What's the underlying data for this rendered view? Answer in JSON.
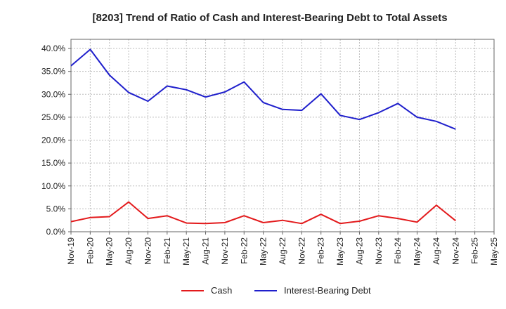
{
  "chart_data": {
    "type": "line",
    "title": "[8203]  Trend of Ratio of Cash and Interest-Bearing Debt to Total Assets",
    "xlabel": "",
    "ylabel": "",
    "categories": [
      "Nov-19",
      "Feb-20",
      "May-20",
      "Aug-20",
      "Nov-20",
      "Feb-21",
      "May-21",
      "Aug-21",
      "Nov-21",
      "Feb-22",
      "May-22",
      "Aug-22",
      "Nov-22",
      "Feb-23",
      "May-23",
      "Aug-23",
      "Nov-23",
      "Feb-24",
      "May-24",
      "Aug-24",
      "Nov-24",
      "Feb-25",
      "May-25"
    ],
    "y_tick_labels": [
      "0.0%",
      "5.0%",
      "10.0%",
      "15.0%",
      "20.0%",
      "25.0%",
      "30.0%",
      "35.0%",
      "40.0%"
    ],
    "ylim": [
      0,
      42
    ],
    "grid": true,
    "legend_position": "bottom",
    "series": [
      {
        "name": "Cash",
        "color": "#e31a1c",
        "values": [
          2.2,
          3.1,
          3.3,
          6.5,
          2.9,
          3.5,
          1.9,
          1.8,
          2.0,
          3.5,
          2.0,
          2.5,
          1.8,
          3.8,
          1.8,
          2.3,
          3.5,
          2.9,
          2.1,
          5.8,
          2.4,
          null,
          null
        ]
      },
      {
        "name": "Interest-Bearing Debt",
        "color": "#1f1fcc",
        "values": [
          36.2,
          39.8,
          34.2,
          30.4,
          28.5,
          31.8,
          31.0,
          29.4,
          30.5,
          32.7,
          28.2,
          26.7,
          26.5,
          30.1,
          25.4,
          24.5,
          26.0,
          28.0,
          25.0,
          24.1,
          22.4,
          null,
          null
        ]
      }
    ]
  }
}
